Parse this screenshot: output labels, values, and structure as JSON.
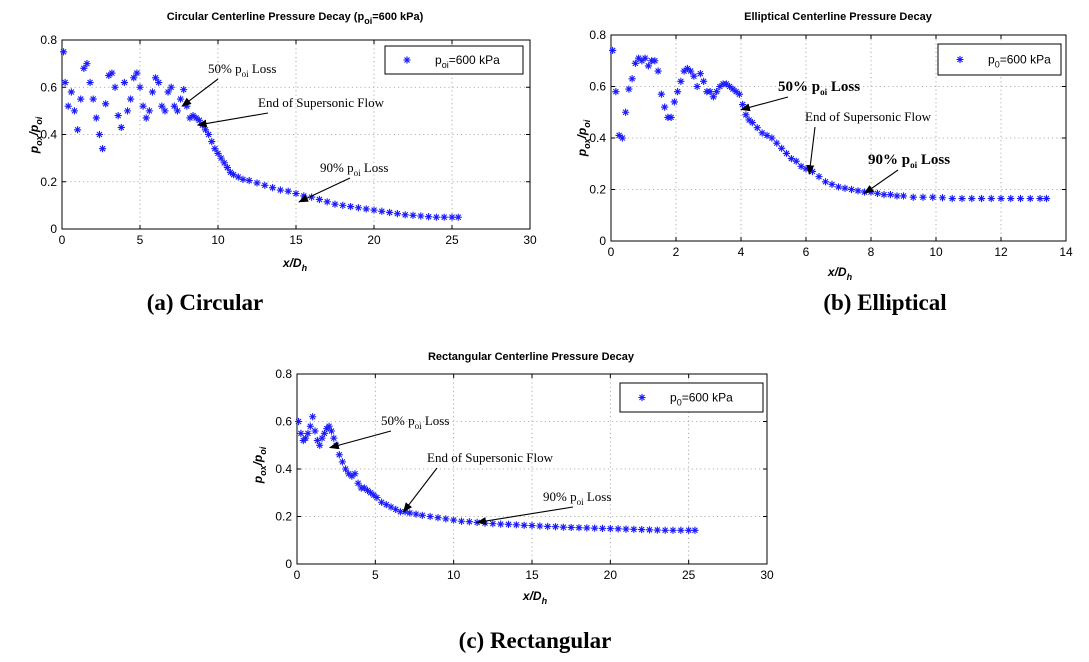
{
  "chart_data": [
    {
      "type": "scatter",
      "title_main": "Circular Centerline Pressure Decay (p",
      "title_sub": "oi",
      "title_tail": "=600 kPa)",
      "xlabel_main": "x/D",
      "xlabel_sub": "h",
      "ylabel_a": "p",
      "ylabel_a_sub": "ox",
      "ylabel_b": "/p",
      "ylabel_b_sub": "oi",
      "xlim": [
        0,
        30
      ],
      "ylim": [
        0,
        0.8
      ],
      "xticks": [
        0,
        5,
        10,
        15,
        20,
        25,
        30
      ],
      "yticks": [
        0,
        0.2,
        0.4,
        0.6,
        0.8
      ],
      "grid": true,
      "legend_position": "top-right",
      "series": [
        {
          "name_main": "p",
          "name_sub": "oi",
          "name_tail": "=600 kPa",
          "marker": "*",
          "x": [
            0.1,
            0.2,
            0.4,
            0.6,
            0.8,
            1.0,
            1.2,
            1.4,
            1.6,
            1.8,
            2.0,
            2.2,
            2.4,
            2.6,
            2.8,
            3.0,
            3.2,
            3.4,
            3.6,
            3.8,
            4.0,
            4.2,
            4.4,
            4.6,
            4.8,
            5.0,
            5.2,
            5.4,
            5.6,
            5.8,
            6.0,
            6.2,
            6.4,
            6.6,
            6.8,
            7.0,
            7.2,
            7.4,
            7.6,
            7.8,
            8.0,
            8.2,
            8.4,
            8.6,
            8.8,
            9.0,
            9.2,
            9.4,
            9.6,
            9.8,
            10.0,
            10.2,
            10.4,
            10.6,
            10.8,
            11.0,
            11.3,
            11.6,
            12.0,
            12.5,
            13.0,
            13.5,
            14.0,
            14.5,
            15.0,
            15.5,
            16.0,
            16.5,
            17.0,
            17.5,
            18.0,
            18.5,
            19.0,
            19.5,
            20.0,
            20.5,
            21.0,
            21.5,
            22.0,
            22.5,
            23.0,
            23.5,
            24.0,
            24.5,
            25.0,
            25.4
          ],
          "y": [
            0.75,
            0.62,
            0.52,
            0.58,
            0.5,
            0.42,
            0.55,
            0.68,
            0.7,
            0.62,
            0.55,
            0.47,
            0.4,
            0.34,
            0.53,
            0.65,
            0.66,
            0.6,
            0.48,
            0.43,
            0.62,
            0.5,
            0.55,
            0.64,
            0.66,
            0.6,
            0.52,
            0.47,
            0.5,
            0.58,
            0.64,
            0.62,
            0.52,
            0.5,
            0.58,
            0.6,
            0.52,
            0.5,
            0.55,
            0.59,
            0.52,
            0.47,
            0.48,
            0.47,
            0.46,
            0.44,
            0.42,
            0.4,
            0.37,
            0.34,
            0.32,
            0.3,
            0.28,
            0.26,
            0.24,
            0.23,
            0.22,
            0.21,
            0.205,
            0.195,
            0.185,
            0.175,
            0.165,
            0.16,
            0.15,
            0.14,
            0.135,
            0.125,
            0.115,
            0.105,
            0.1,
            0.095,
            0.09,
            0.085,
            0.08,
            0.075,
            0.07,
            0.065,
            0.06,
            0.058,
            0.055,
            0.052,
            0.05,
            0.05,
            0.05,
            0.05
          ]
        }
      ],
      "annotations": [
        {
          "text_a": "50% p",
          "text_sub": "oi",
          "text_b": " Loss",
          "at": [
            7.7,
            0.52
          ]
        },
        {
          "text_a": "End of Supersonic Flow",
          "text_sub": "",
          "text_b": "",
          "at": [
            8.7,
            0.44
          ]
        },
        {
          "text_a": "90% p",
          "text_sub": "oi",
          "text_b": " Loss",
          "at": [
            15.2,
            0.115
          ]
        }
      ],
      "caption": "(a) Circular"
    },
    {
      "type": "scatter",
      "title_main": "Elliptical Centerline Pressure Decay",
      "title_sub": "",
      "title_tail": "",
      "xlabel_main": "x/D",
      "xlabel_sub": "h",
      "ylabel_a": "p",
      "ylabel_a_sub": "ox",
      "ylabel_b": "/p",
      "ylabel_b_sub": "oi",
      "xlim": [
        0,
        14
      ],
      "ylim": [
        0,
        0.8
      ],
      "xticks": [
        0,
        2,
        4,
        6,
        8,
        10,
        12,
        14
      ],
      "yticks": [
        0,
        0.2,
        0.4,
        0.6,
        0.8
      ],
      "grid": true,
      "legend_position": "top-right",
      "series": [
        {
          "name_main": "p",
          "name_sub": "0",
          "name_tail": "=600 kPa",
          "marker": "*",
          "x": [
            0.05,
            0.15,
            0.25,
            0.35,
            0.45,
            0.55,
            0.65,
            0.75,
            0.85,
            0.95,
            1.05,
            1.15,
            1.25,
            1.35,
            1.45,
            1.55,
            1.65,
            1.75,
            1.85,
            1.95,
            2.05,
            2.15,
            2.25,
            2.35,
            2.45,
            2.55,
            2.65,
            2.75,
            2.85,
            2.95,
            3.05,
            3.15,
            3.25,
            3.35,
            3.45,
            3.55,
            3.65,
            3.75,
            3.85,
            3.95,
            4.05,
            4.15,
            4.25,
            4.35,
            4.5,
            4.65,
            4.8,
            4.95,
            5.1,
            5.25,
            5.4,
            5.55,
            5.7,
            5.85,
            6.0,
            6.2,
            6.4,
            6.6,
            6.8,
            7.0,
            7.2,
            7.4,
            7.6,
            7.8,
            8.0,
            8.2,
            8.4,
            8.6,
            8.8,
            9.0,
            9.3,
            9.6,
            9.9,
            10.2,
            10.5,
            10.8,
            11.1,
            11.4,
            11.7,
            12.0,
            12.3,
            12.6,
            12.9,
            13.2,
            13.4
          ],
          "y": [
            0.74,
            0.58,
            0.41,
            0.4,
            0.5,
            0.59,
            0.63,
            0.69,
            0.71,
            0.7,
            0.71,
            0.68,
            0.7,
            0.7,
            0.66,
            0.57,
            0.52,
            0.48,
            0.48,
            0.54,
            0.58,
            0.62,
            0.66,
            0.67,
            0.66,
            0.64,
            0.6,
            0.65,
            0.62,
            0.58,
            0.58,
            0.56,
            0.58,
            0.6,
            0.61,
            0.61,
            0.6,
            0.59,
            0.58,
            0.57,
            0.53,
            0.49,
            0.47,
            0.46,
            0.44,
            0.42,
            0.41,
            0.4,
            0.38,
            0.36,
            0.34,
            0.32,
            0.31,
            0.29,
            0.28,
            0.27,
            0.25,
            0.23,
            0.22,
            0.21,
            0.205,
            0.2,
            0.195,
            0.19,
            0.19,
            0.185,
            0.18,
            0.18,
            0.175,
            0.175,
            0.17,
            0.17,
            0.17,
            0.168,
            0.165,
            0.165,
            0.165,
            0.165,
            0.165,
            0.165,
            0.165,
            0.165,
            0.165,
            0.165,
            0.165
          ]
        }
      ],
      "annotations": [
        {
          "text_a": "50% p",
          "text_sub": "oi",
          "text_b": " Loss",
          "at": [
            4.0,
            0.51
          ]
        },
        {
          "text_a": "End of Supersonic Flow",
          "text_sub": "",
          "text_b": "",
          "at": [
            6.1,
            0.26
          ]
        },
        {
          "text_a": "90% p",
          "text_sub": "oi",
          "text_b": " Loss",
          "at": [
            7.8,
            0.185
          ]
        }
      ],
      "caption": "(b) Elliptical"
    },
    {
      "type": "scatter",
      "title_main": "Rectangular Centerline  Pressure Decay",
      "title_sub": "",
      "title_tail": "",
      "xlabel_main": "x/D",
      "xlabel_sub": "h",
      "ylabel_a": "p",
      "ylabel_a_sub": "ox",
      "ylabel_b": "/p",
      "ylabel_b_sub": "oi",
      "xlim": [
        0,
        30
      ],
      "ylim": [
        0,
        0.8
      ],
      "xticks": [
        0,
        5,
        10,
        15,
        20,
        25,
        30
      ],
      "yticks": [
        0,
        0.2,
        0.4,
        0.6,
        0.8
      ],
      "grid": true,
      "legend_position": "top-right",
      "series": [
        {
          "name_main": "p",
          "name_sub": "0",
          "name_tail": "=600 kPa",
          "marker": "*",
          "x": [
            0.1,
            0.25,
            0.4,
            0.55,
            0.7,
            0.85,
            1.0,
            1.15,
            1.3,
            1.45,
            1.6,
            1.75,
            1.9,
            2.05,
            2.2,
            2.35,
            2.5,
            2.7,
            2.9,
            3.1,
            3.3,
            3.5,
            3.7,
            3.9,
            4.1,
            4.3,
            4.5,
            4.7,
            4.9,
            5.1,
            5.4,
            5.7,
            6.0,
            6.3,
            6.6,
            6.9,
            7.2,
            7.6,
            8.0,
            8.5,
            9.0,
            9.5,
            10.0,
            10.5,
            11.0,
            11.5,
            12.0,
            12.5,
            13.0,
            13.5,
            14.0,
            14.5,
            15.0,
            15.5,
            16.0,
            16.5,
            17.0,
            17.5,
            18.0,
            18.5,
            19.0,
            19.5,
            20.0,
            20.5,
            21.0,
            21.5,
            22.0,
            22.5,
            23.0,
            23.5,
            24.0,
            24.5,
            25.0,
            25.4
          ],
          "y": [
            0.6,
            0.55,
            0.52,
            0.53,
            0.55,
            0.58,
            0.62,
            0.56,
            0.52,
            0.5,
            0.53,
            0.55,
            0.57,
            0.58,
            0.56,
            0.53,
            0.5,
            0.46,
            0.43,
            0.4,
            0.38,
            0.37,
            0.38,
            0.34,
            0.32,
            0.32,
            0.31,
            0.3,
            0.29,
            0.28,
            0.26,
            0.25,
            0.24,
            0.23,
            0.22,
            0.22,
            0.215,
            0.21,
            0.205,
            0.2,
            0.195,
            0.19,
            0.185,
            0.18,
            0.178,
            0.175,
            0.172,
            0.17,
            0.168,
            0.167,
            0.165,
            0.163,
            0.162,
            0.16,
            0.158,
            0.157,
            0.155,
            0.154,
            0.153,
            0.152,
            0.151,
            0.15,
            0.149,
            0.148,
            0.147,
            0.146,
            0.145,
            0.144,
            0.143,
            0.142,
            0.142,
            0.142,
            0.142,
            0.142
          ]
        }
      ],
      "annotations": [
        {
          "text_a": "50% p",
          "text_sub": "oi",
          "text_b": " Loss",
          "at": [
            2.1,
            0.49
          ]
        },
        {
          "text_a": "End of Supersonic Flow",
          "text_sub": "",
          "text_b": "",
          "at": [
            6.8,
            0.22
          ]
        },
        {
          "text_a": "90% p",
          "text_sub": "oi",
          "text_b": " Loss",
          "at": [
            11.5,
            0.175
          ]
        }
      ],
      "caption": "(c) Rectangular"
    }
  ]
}
